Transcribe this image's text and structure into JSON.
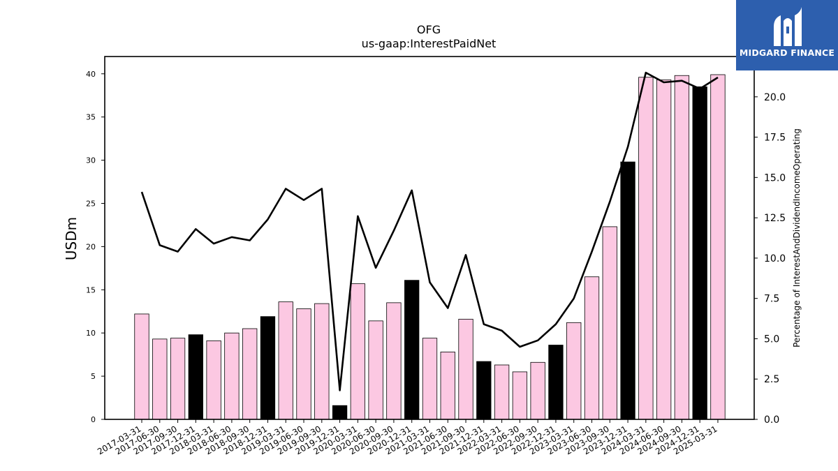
{
  "chart_data": {
    "type": "bar",
    "title": "OFG",
    "subtitle": "us-gaap:InterestPaidNet",
    "ylabel": "USDm",
    "y2label": "Percentage of InterestAndDividendIncomeOperating",
    "ylim": [
      0,
      42
    ],
    "y2lim": [
      0,
      22.5
    ],
    "yticks": [
      0,
      5,
      10,
      15,
      20,
      25,
      30,
      35,
      40
    ],
    "y2ticks": [
      "0.0",
      "2.5",
      "5.0",
      "7.5",
      "10.0",
      "12.5",
      "15.0",
      "17.5",
      "20.0"
    ],
    "categories": [
      "2017-03-31",
      "2017-06-30",
      "2017-09-30",
      "2017-12-31",
      "2018-03-31",
      "2018-06-30",
      "2018-09-30",
      "2018-12-31",
      "2019-03-31",
      "2019-06-30",
      "2019-09-30",
      "2019-12-31",
      "2020-03-31",
      "2020-06-30",
      "2020-09-30",
      "2020-12-31",
      "2021-03-31",
      "2021-06-30",
      "2021-09-30",
      "2021-12-31",
      "2022-03-31",
      "2022-06-30",
      "2022-09-30",
      "2022-12-31",
      "2023-03-31",
      "2023-06-30",
      "2023-09-30",
      "2023-12-31",
      "2024-03-31",
      "2024-06-30",
      "2024-09-30",
      "2024-12-31",
      "2025-03-31"
    ],
    "series": [
      {
        "kind": "bar",
        "values": [
          12.2,
          9.3,
          9.4,
          9.8,
          9.1,
          10.0,
          10.5,
          11.9,
          13.6,
          12.8,
          13.4,
          1.6,
          15.7,
          11.4,
          13.5,
          16.1,
          9.4,
          7.8,
          11.6,
          6.7,
          6.3,
          5.5,
          6.6,
          8.6,
          11.2,
          16.5,
          22.3,
          29.8,
          39.6,
          39.3,
          39.8,
          38.5,
          39.9
        ]
      },
      {
        "kind": "line",
        "axis": "right",
        "values": [
          14.1,
          10.8,
          10.4,
          11.8,
          10.9,
          11.3,
          11.1,
          12.4,
          14.3,
          13.6,
          14.3,
          1.8,
          12.6,
          9.4,
          11.7,
          14.2,
          8.5,
          6.9,
          10.2,
          5.9,
          5.5,
          4.5,
          4.9,
          5.9,
          7.5,
          10.4,
          13.5,
          16.9,
          21.5,
          20.9,
          21.0,
          20.5,
          21.2
        ]
      }
    ],
    "highlight_indices": [
      3,
      7,
      11,
      15,
      19,
      23,
      27,
      31
    ],
    "colors": {
      "bar": "#fcc8e2",
      "bar_highlight": "#000000",
      "line": "#000000",
      "edge": "#000000"
    }
  },
  "logo": {
    "text": "MIDGARD FINANCE",
    "color": "#2d5fae"
  }
}
